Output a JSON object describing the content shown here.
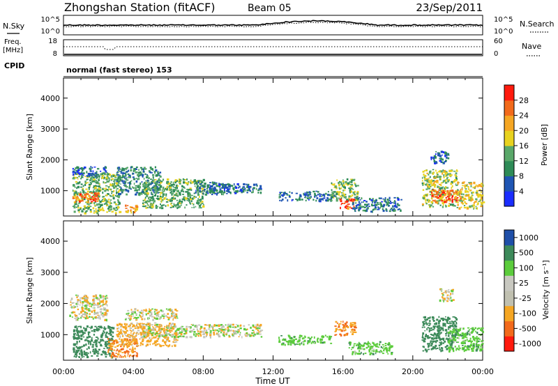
{
  "header": {
    "station": "Zhongshan Station (fitACF)",
    "beam": "Beam 05",
    "date": "23/Sep/2011"
  },
  "top_strip": {
    "left_label": "N.Sky",
    "right_label": "N.Search",
    "left_ticks": [
      "10^5",
      "10^0"
    ],
    "right_ticks": [
      "10^5",
      "10^0"
    ]
  },
  "freq_strip": {
    "left_label_1": "Freq.",
    "left_label_2": "[MHz]",
    "right_label": "Nave",
    "left_ticks": [
      "18",
      "8"
    ],
    "right_ticks": [
      "60",
      "0"
    ]
  },
  "cpid": {
    "label": "CPID",
    "text": "normal (fast stereo) 153"
  },
  "panels": {
    "power": {
      "ylabel": "Slant Range [km]",
      "cbar_label": "Power [dB]"
    },
    "velocity": {
      "ylabel": "Slant Range [km]",
      "cbar_label": "Velocity  [m s⁻¹]"
    }
  },
  "xaxis": {
    "label": "Time UT"
  },
  "colors": {
    "power_scale": [
      "#1a2dff",
      "#1f55b3",
      "#2e8b57",
      "#5aa86a",
      "#e8d21f",
      "#f5a623",
      "#f26a1b",
      "#ff1a0d"
    ],
    "velocity_scale": [
      "#ff1a0d",
      "#f26a1b",
      "#f5a623",
      "#c0c0b0",
      "#c8c8c0",
      "#5ccc3c",
      "#3d8a5a",
      "#1f4fa8"
    ]
  },
  "chart_data": [
    {
      "type": "heatmap",
      "title": "Power",
      "ylabel": "Slant Range [km]",
      "xlabel": "Time UT",
      "x_ticks": [
        "00:00",
        "04:00",
        "08:00",
        "12:00",
        "16:00",
        "20:00",
        "00:00"
      ],
      "xlim_hours": [
        0,
        24
      ],
      "y_ticks": [
        1000,
        2000,
        3000,
        4000
      ],
      "ylim": [
        180,
        4650
      ],
      "colorbar": {
        "label": "Power [dB]",
        "ticks": [
          4,
          8,
          12,
          16,
          20,
          24,
          28
        ],
        "range": [
          0,
          32
        ]
      },
      "echo_regions": [
        {
          "t0": 0.5,
          "t1": 3.2,
          "r0": 300,
          "r1": 1600,
          "value": 14
        },
        {
          "t0": 0.5,
          "t1": 2.0,
          "r0": 650,
          "r1": 950,
          "value": 26
        },
        {
          "t0": 0.5,
          "t1": 2.5,
          "r0": 1500,
          "r1": 1800,
          "value": 7
        },
        {
          "t0": 3.0,
          "t1": 5.5,
          "r0": 900,
          "r1": 1800,
          "value": 10
        },
        {
          "t0": 3.5,
          "t1": 4.3,
          "r0": 300,
          "r1": 550,
          "value": 22
        },
        {
          "t0": 4.5,
          "t1": 8.0,
          "r0": 450,
          "r1": 1400,
          "value": 13
        },
        {
          "t0": 7.5,
          "t1": 9.5,
          "r0": 900,
          "r1": 1300,
          "value": 8
        },
        {
          "t0": 8.0,
          "t1": 11.3,
          "r0": 950,
          "r1": 1250,
          "value": 8
        },
        {
          "t0": 12.3,
          "t1": 15.5,
          "r0": 700,
          "r1": 1000,
          "value": 8
        },
        {
          "t0": 15.3,
          "t1": 16.8,
          "r0": 700,
          "r1": 1400,
          "value": 15
        },
        {
          "t0": 15.8,
          "t1": 16.6,
          "r0": 450,
          "r1": 750,
          "value": 28
        },
        {
          "t0": 16.5,
          "t1": 19.3,
          "r0": 350,
          "r1": 800,
          "value": 8
        },
        {
          "t0": 20.5,
          "t1": 22.5,
          "r0": 500,
          "r1": 1700,
          "value": 16
        },
        {
          "t0": 21.0,
          "t1": 22.7,
          "r0": 650,
          "r1": 1050,
          "value": 26
        },
        {
          "t0": 22.5,
          "t1": 24.0,
          "r0": 450,
          "r1": 1300,
          "value": 18
        },
        {
          "t0": 21.0,
          "t1": 22.0,
          "r0": 1900,
          "r1": 2300,
          "value": 7
        }
      ]
    },
    {
      "type": "heatmap",
      "title": "Velocity",
      "ylabel": "Slant Range [km]",
      "xlabel": "Time UT",
      "x_ticks": [
        "00:00",
        "04:00",
        "08:00",
        "12:00",
        "16:00",
        "20:00",
        "00:00"
      ],
      "xlim_hours": [
        0,
        24
      ],
      "y_ticks": [
        1000,
        2000,
        3000,
        4000
      ],
      "ylim": [
        180,
        4650
      ],
      "colorbar": {
        "label": "Velocity [m s-1]",
        "ticks": [
          1000,
          500,
          100,
          25,
          -25,
          -100,
          -500,
          -1000
        ]
      },
      "echo_regions": [
        {
          "t0": 0.5,
          "t1": 2.8,
          "r0": 300,
          "r1": 1300,
          "value": 600
        },
        {
          "t0": 0.3,
          "t1": 2.5,
          "r0": 1500,
          "r1": 2300,
          "value": 0
        },
        {
          "t0": 2.5,
          "t1": 4.2,
          "r0": 300,
          "r1": 900,
          "value": -300
        },
        {
          "t0": 3.0,
          "t1": 6.5,
          "r0": 650,
          "r1": 1400,
          "value": -150
        },
        {
          "t0": 4.5,
          "t1": 11.3,
          "r0": 950,
          "r1": 1350,
          "value": 0
        },
        {
          "t0": 3.5,
          "t1": 6.5,
          "r0": 1500,
          "r1": 1850,
          "value": 0
        },
        {
          "t0": 12.3,
          "t1": 15.3,
          "r0": 700,
          "r1": 1000,
          "value": 200
        },
        {
          "t0": 15.5,
          "t1": 16.7,
          "r0": 1000,
          "r1": 1450,
          "value": -300
        },
        {
          "t0": 16.3,
          "t1": 18.8,
          "r0": 400,
          "r1": 800,
          "value": 200
        },
        {
          "t0": 20.5,
          "t1": 22.5,
          "r0": 500,
          "r1": 1600,
          "value": 600
        },
        {
          "t0": 22.0,
          "t1": 24.0,
          "r0": 500,
          "r1": 1250,
          "value": 200
        },
        {
          "t0": 21.5,
          "t1": 22.3,
          "r0": 2100,
          "r1": 2500,
          "value": 0
        }
      ]
    }
  ]
}
